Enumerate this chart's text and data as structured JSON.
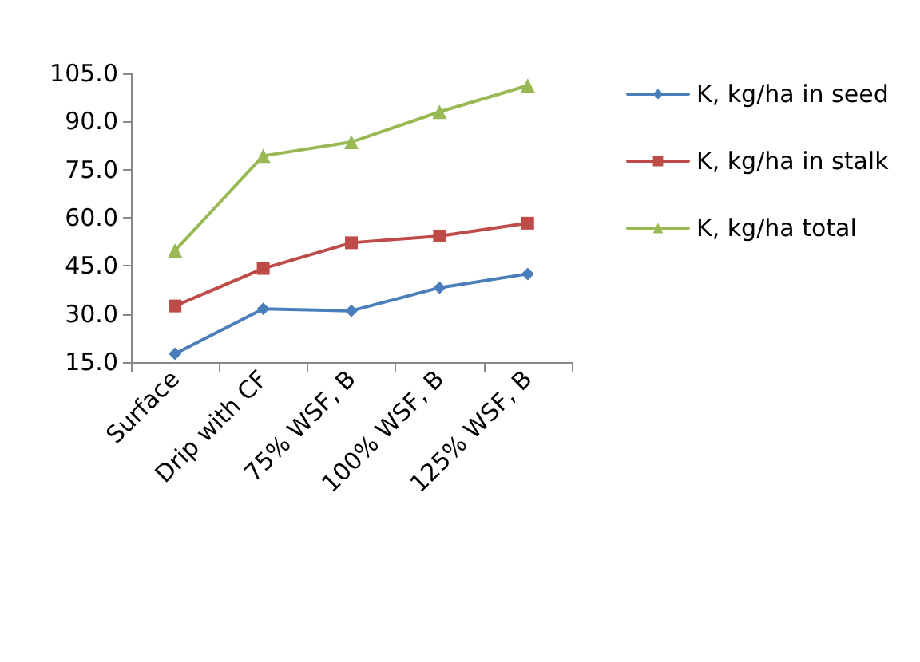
{
  "chart_data": {
    "type": "line",
    "categories": [
      "Surface",
      "Drip with CF",
      "75% WSF, B",
      "100% WSF, B",
      "125% WSF, B"
    ],
    "series": [
      {
        "name": "K, kg/ha in seed",
        "color": "#4a7ebb",
        "marker": "diamond",
        "values": [
          17.6,
          31.6,
          31.0,
          38.2,
          42.5
        ]
      },
      {
        "name": "K, kg/ha in stalk",
        "color": "#be4b48",
        "marker": "square",
        "values": [
          32.5,
          44.2,
          52.2,
          54.3,
          58.3
        ]
      },
      {
        "name": "K, kg/ha total",
        "color": "#98b954",
        "marker": "triangle",
        "values": [
          49.8,
          79.3,
          83.6,
          93.0,
          101.2
        ]
      }
    ],
    "ylim": [
      15,
      105
    ],
    "yticks": [
      {
        "value": 15,
        "label": "15.0"
      },
      {
        "value": 30,
        "label": "30.0"
      },
      {
        "value": 45,
        "label": "45.0"
      },
      {
        "value": 60,
        "label": "60.0"
      },
      {
        "value": 75,
        "label": "75.0"
      },
      {
        "value": 90,
        "label": "90.0"
      },
      {
        "value": 105,
        "label": "105.0"
      }
    ],
    "grid": false,
    "legend": "right"
  }
}
